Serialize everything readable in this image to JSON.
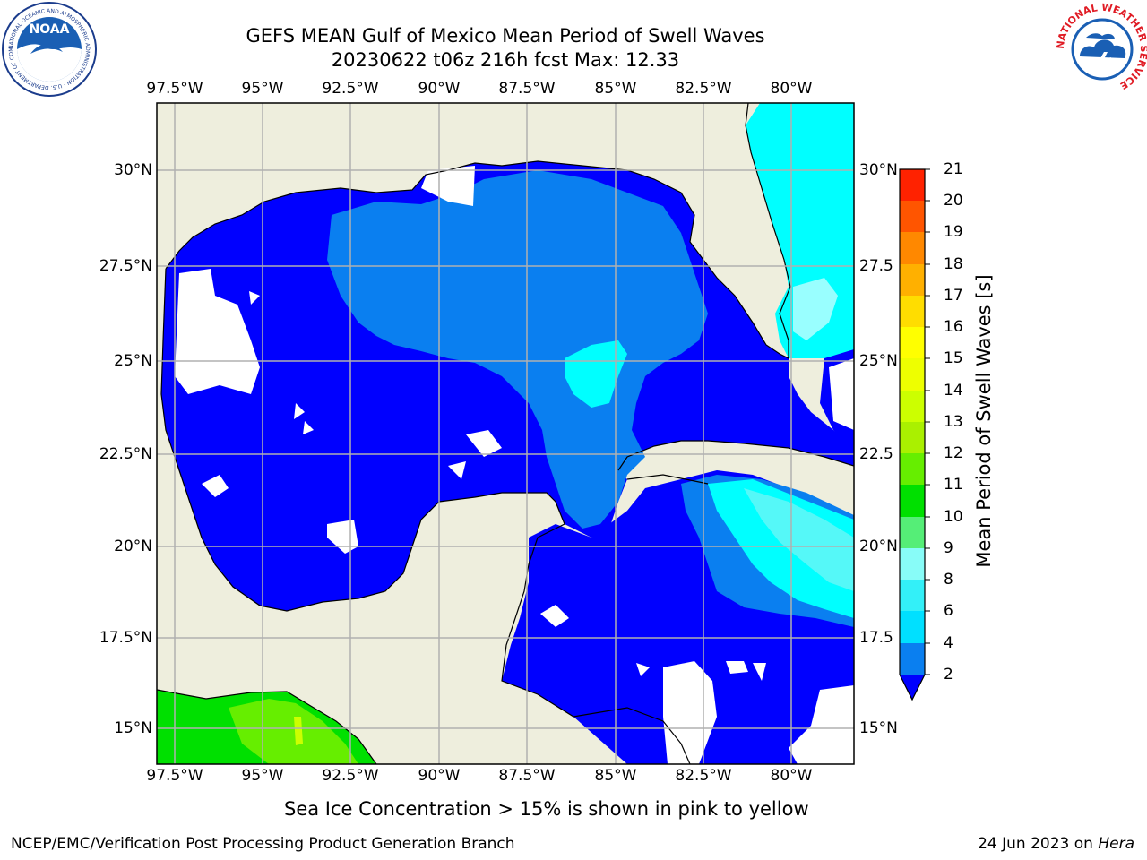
{
  "title": {
    "line1": "GEFS MEAN Gulf of Mexico Mean Period of Swell Waves",
    "line2": "20230622 t06z 216h fcst   Max: 12.33"
  },
  "map": {
    "lon_ticks_top": [
      "97.5°W",
      "95°W",
      "92.5°W",
      "90°W",
      "87.5°W",
      "85°W",
      "82.5°W",
      "80°W"
    ],
    "lon_ticks_bottom": [
      "97.5°W",
      "95°W",
      "92.5°W",
      "90°W",
      "87.5°W",
      "85°W",
      "82.5°W",
      "80°W"
    ],
    "lat_ticks_left": [
      "30°N",
      "27.5°N",
      "25°N",
      "22.5°N",
      "20°N",
      "17.5°N",
      "15°N"
    ],
    "lat_ticks_right": [
      "30°N",
      "27.5",
      "25°N",
      "22.5",
      "20°N",
      "17.5",
      "15°N"
    ],
    "land_color": "#eeeedd",
    "grid_color": "#b0b0b0"
  },
  "colorbar": {
    "label": "Mean Period of Swell Waves [s]",
    "ticks": [
      "2",
      "4",
      "6",
      "8",
      "9",
      "10",
      "11",
      "12",
      "13",
      "14",
      "15",
      "16",
      "17",
      "18",
      "19",
      "20",
      "21"
    ],
    "colors": [
      "#0a7ff0",
      "#00e0ff",
      "#33f0f8",
      "#88fcf8",
      "#55ee77",
      "#00e000",
      "#66ee00",
      "#aaf000",
      "#ccff00",
      "#eeff00",
      "#ffff00",
      "#ffdd00",
      "#ffb000",
      "#ff8800",
      "#ff5500",
      "#ff2200"
    ],
    "below_color": "#0000ff"
  },
  "ocean_colors": {
    "band_lt2": "#0000ff",
    "band_2_4": "#0a7ff0",
    "band_4_6": "#00ffff",
    "band_6_8": "#55f8f8",
    "band_8_9": "#99ffff",
    "band_10_11": "#00e000",
    "band_11_12": "#66ee00"
  },
  "subtitle": "Sea Ice Concentration > 15% is shown in pink to yellow",
  "footer": {
    "left": "NCEP/EMC/Verification Post Processing Product Generation Branch",
    "right_date": "24 Jun 2023 on ",
    "right_machine": "Hera"
  },
  "logos": {
    "noaa": {
      "text": "NOAA",
      "ring_text": "NATIONAL OCEANIC AND ATMOSPHERIC ADMINISTRATION · U.S. DEPARTMENT OF COMMERCE"
    },
    "nws": {
      "ring_text": "NATIONAL WEATHER SERVICE"
    }
  }
}
